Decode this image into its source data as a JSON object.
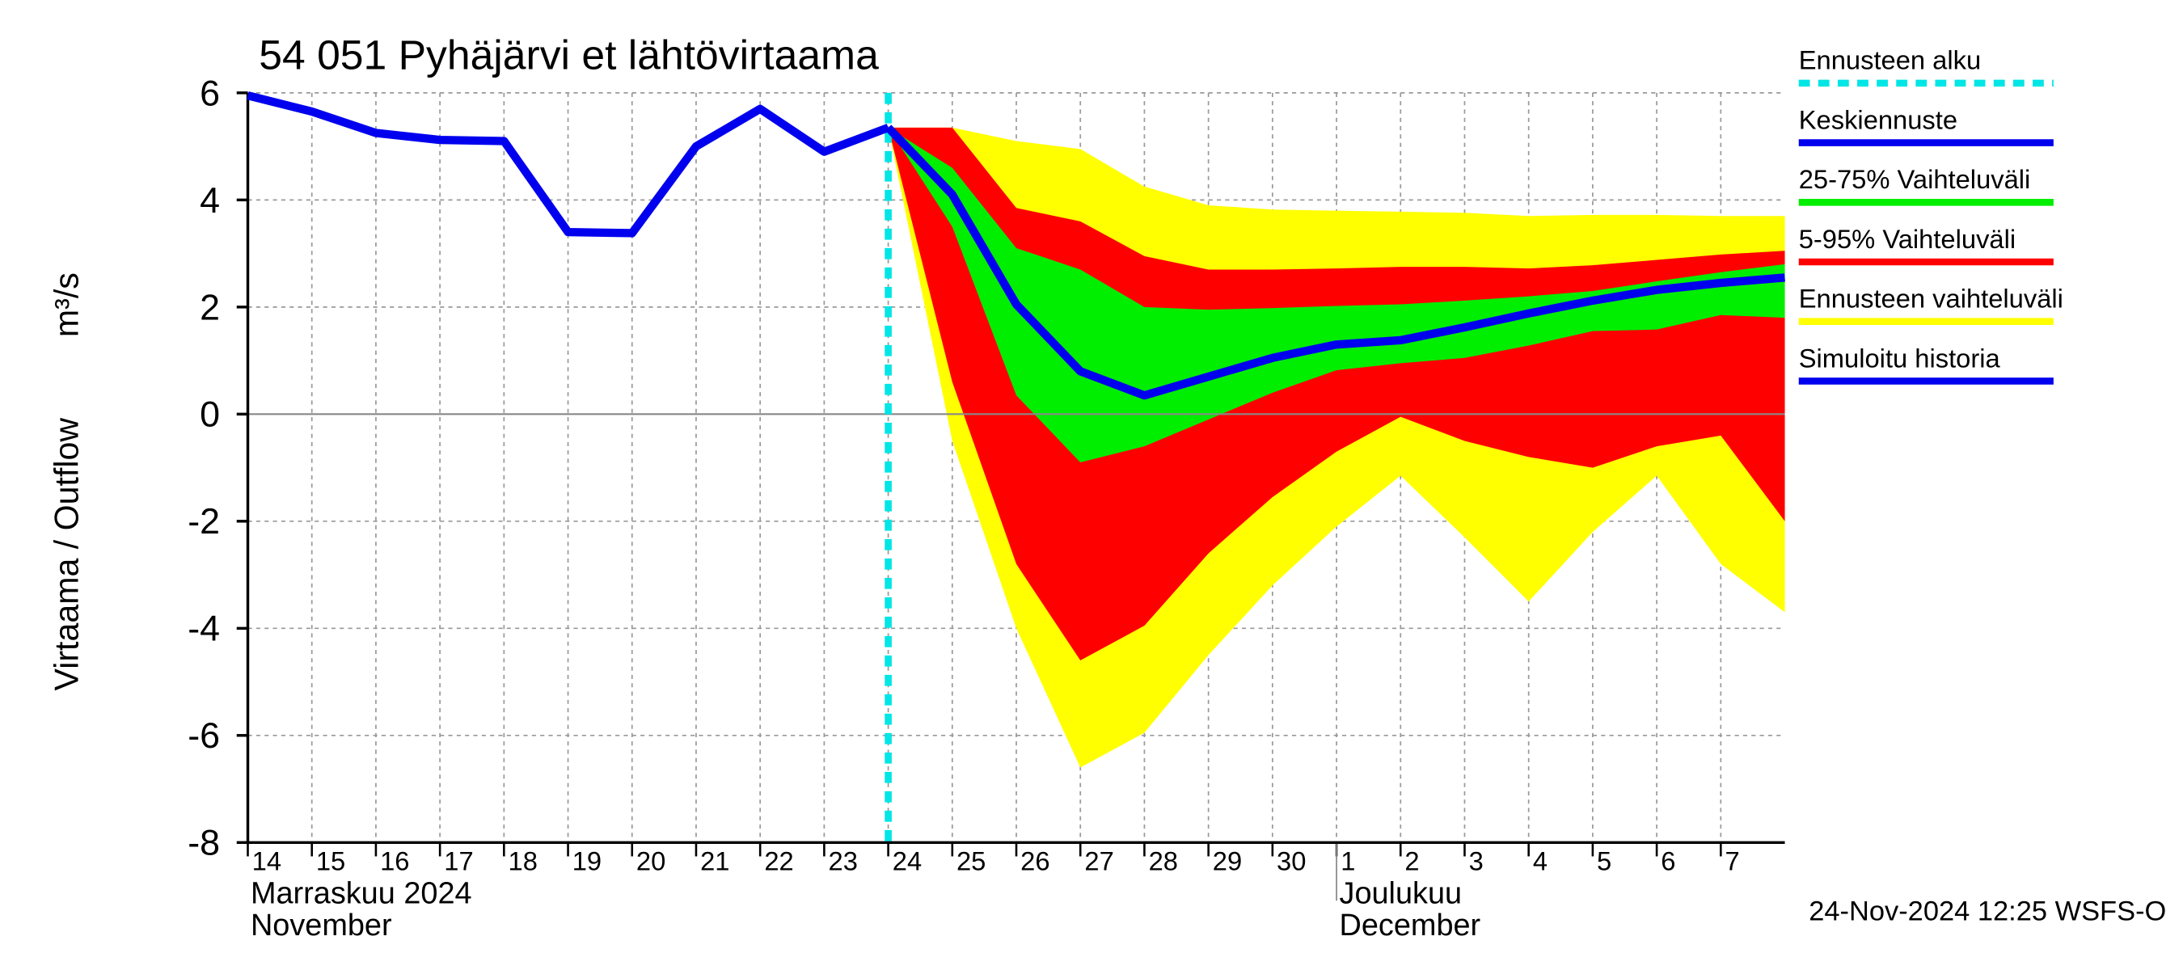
{
  "chart_data": {
    "type": "forecast",
    "title": "54 051 Pyhäjärvi et lähtövirtaama",
    "y_label": "Virtaama / Outflow",
    "y_unit": "m³/s",
    "xlim": [
      0,
      24
    ],
    "xticks": [
      {
        "value": 0,
        "label": "14"
      },
      {
        "value": 1,
        "label": "15"
      },
      {
        "value": 2,
        "label": "16"
      },
      {
        "value": 3,
        "label": "17"
      },
      {
        "value": 4,
        "label": "18"
      },
      {
        "value": 5,
        "label": "19"
      },
      {
        "value": 6,
        "label": "20"
      },
      {
        "value": 7,
        "label": "21"
      },
      {
        "value": 8,
        "label": "22"
      },
      {
        "value": 9,
        "label": "23"
      },
      {
        "value": 10,
        "label": "24"
      },
      {
        "value": 11,
        "label": "25"
      },
      {
        "value": 12,
        "label": "26"
      },
      {
        "value": 13,
        "label": "27"
      },
      {
        "value": 14,
        "label": "28"
      },
      {
        "value": 15,
        "label": "29"
      },
      {
        "value": 16,
        "label": "30"
      },
      {
        "value": 17,
        "label": "1"
      },
      {
        "value": 18,
        "label": "2"
      },
      {
        "value": 19,
        "label": "3"
      },
      {
        "value": 20,
        "label": "4"
      },
      {
        "value": 21,
        "label": "5"
      },
      {
        "value": 22,
        "label": "6"
      },
      {
        "value": 23,
        "label": "7"
      }
    ],
    "ylim": [
      -8,
      6
    ],
    "yticks": [
      -8,
      -6,
      -4,
      -2,
      0,
      2,
      4,
      6
    ],
    "grid": true,
    "months": [
      {
        "x": 0,
        "fi": "Marraskuu 2024",
        "en": "November"
      },
      {
        "x": 17,
        "fi": "Joulukuu",
        "en": "December"
      }
    ],
    "x": [
      0,
      1,
      2,
      3,
      4,
      5,
      6,
      7,
      8,
      9,
      10,
      11,
      12,
      13,
      14,
      15,
      16,
      17,
      18,
      19,
      20,
      21,
      22,
      23,
      24
    ],
    "forecast_start": {
      "name": "Ennusteen alku",
      "x": 10,
      "color": "#00e5e5"
    },
    "series": [
      {
        "name": "Keskiennuste",
        "color": "#0000ee",
        "values": [
          null,
          null,
          null,
          null,
          null,
          null,
          null,
          null,
          null,
          null,
          5.35,
          4.1,
          2.05,
          0.8,
          0.35,
          0.7,
          1.05,
          1.3,
          1.38,
          1.62,
          1.88,
          2.12,
          2.32,
          2.45,
          2.55
        ]
      },
      {
        "name": "Simuloitu historia",
        "color": "#0000ee",
        "values": [
          5.95,
          5.65,
          5.25,
          5.12,
          5.1,
          3.4,
          3.38,
          5.0,
          5.7,
          4.9,
          5.35,
          null,
          null,
          null,
          null,
          null,
          null,
          null,
          null,
          null,
          null,
          null,
          null,
          null,
          null
        ]
      }
    ],
    "bands": [
      {
        "name": "25-75% Vaihteluväli",
        "color": "#00ee00",
        "upper": [
          null,
          null,
          null,
          null,
          null,
          null,
          null,
          null,
          null,
          null,
          5.35,
          4.6,
          3.1,
          2.7,
          2.0,
          1.95,
          1.98,
          2.02,
          2.05,
          2.12,
          2.2,
          2.3,
          2.48,
          2.65,
          2.8
        ],
        "lower": [
          null,
          null,
          null,
          null,
          null,
          null,
          null,
          null,
          null,
          null,
          5.35,
          3.5,
          0.35,
          -0.9,
          -0.6,
          -0.1,
          0.4,
          0.82,
          0.95,
          1.05,
          1.28,
          1.55,
          1.58,
          1.85,
          1.8
        ]
      },
      {
        "name": "5-95% Vaihteluväli",
        "color": "#ff0000",
        "upper": [
          null,
          null,
          null,
          null,
          null,
          null,
          null,
          null,
          null,
          null,
          5.35,
          5.35,
          3.85,
          3.6,
          2.95,
          2.7,
          2.7,
          2.72,
          2.75,
          2.75,
          2.72,
          2.78,
          2.88,
          2.98,
          3.05
        ],
        "lower": [
          null,
          null,
          null,
          null,
          null,
          null,
          null,
          null,
          null,
          null,
          5.35,
          0.6,
          -2.8,
          -4.6,
          -3.95,
          -2.6,
          -1.55,
          -0.7,
          -0.05,
          -0.5,
          -0.8,
          -1.0,
          -0.6,
          -0.4,
          -2.0
        ]
      },
      {
        "name": "Ennusteen vaihteluväli",
        "color": "#ffff00",
        "upper": [
          null,
          null,
          null,
          null,
          null,
          null,
          null,
          null,
          null,
          null,
          5.35,
          5.35,
          5.1,
          4.95,
          4.25,
          3.9,
          3.82,
          3.8,
          3.78,
          3.76,
          3.7,
          3.72,
          3.72,
          3.7,
          3.7
        ],
        "lower": [
          null,
          null,
          null,
          null,
          null,
          null,
          null,
          null,
          null,
          null,
          5.35,
          -0.5,
          -4.0,
          -6.6,
          -5.95,
          -4.5,
          -3.2,
          -2.1,
          -1.15,
          -2.3,
          -3.5,
          -2.2,
          -1.15,
          -2.8,
          -3.7
        ]
      }
    ],
    "footer": "24-Nov-2024 12:25 WSFS-O"
  }
}
